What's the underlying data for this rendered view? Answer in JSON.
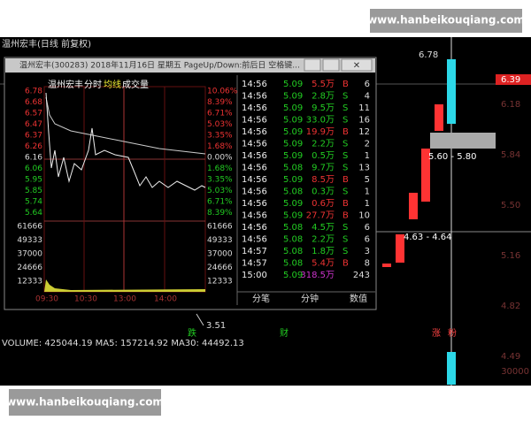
{
  "watermark_top": "www.hanbeikouqiang.com",
  "watermark_bottom": "www.hanbeikouqiang.com",
  "chart_title": "温州宏丰(日线 前复权)",
  "window": {
    "title": "温州宏丰(300283) 2018年11月16日 星期五 PageUp/Down:前后日 空格键...",
    "header": [
      "温州宏丰",
      "分时",
      "均线",
      "成交量"
    ],
    "price_labels": [
      "6.78",
      "6.68",
      "6.57",
      "6.47",
      "6.37",
      "6.26",
      "6.16",
      "6.06",
      "5.95",
      "5.85",
      "5.74",
      "5.64"
    ],
    "pct_labels": [
      "10.06%",
      "8.39%",
      "6.71%",
      "5.03%",
      "3.35%",
      "1.68%",
      "0.00%",
      "1.68%",
      "3.35%",
      "5.03%",
      "6.71%",
      "8.39%"
    ],
    "volume_labels": [
      "61666",
      "49333",
      "37000",
      "24666",
      "12333"
    ],
    "time_labels": [
      "09:30",
      "10:30",
      "13:00",
      "14:00"
    ],
    "trades": [
      [
        "14:56",
        "5.09",
        "5.5万",
        "B",
        "6"
      ],
      [
        "14:56",
        "5.09",
        "2.8万",
        "S",
        "4"
      ],
      [
        "14:56",
        "5.09",
        "9.5万",
        "S",
        "11"
      ],
      [
        "14:56",
        "5.09",
        "33.0万",
        "S",
        "16"
      ],
      [
        "14:56",
        "5.09",
        "19.9万",
        "B",
        "12"
      ],
      [
        "14:56",
        "5.09",
        "2.2万",
        "S",
        "2"
      ],
      [
        "14:56",
        "5.09",
        "0.5万",
        "S",
        "1"
      ],
      [
        "14:56",
        "5.08",
        "9.7万",
        "S",
        "13"
      ],
      [
        "14:56",
        "5.09",
        "8.5万",
        "B",
        "5"
      ],
      [
        "14:56",
        "5.08",
        "0.3万",
        "S",
        "1"
      ],
      [
        "14:56",
        "5.09",
        "0.6万",
        "B",
        "1"
      ],
      [
        "14:56",
        "5.09",
        "27.7万",
        "B",
        "10"
      ],
      [
        "14:56",
        "5.08",
        "4.5万",
        "S",
        "6"
      ],
      [
        "14:56",
        "5.08",
        "2.2万",
        "S",
        "6"
      ],
      [
        "14:57",
        "5.08",
        "1.8万",
        "S",
        "3"
      ],
      [
        "14:57",
        "5.08",
        "5.4万",
        "B",
        "8"
      ],
      [
        "15:00",
        "5.09",
        "318.5万",
        "",
        "243"
      ]
    ],
    "tabs": [
      "分笔",
      "分钟",
      "数值"
    ]
  },
  "annotations": {
    "low": "3.51",
    "high": "6.78",
    "current": "6.39",
    "range1": "5.60 - 5.80",
    "range2": "4.63 - 4.64",
    "fall": "跌",
    "cai": "财",
    "rise": "涨",
    "fen": "粉"
  },
  "right_axis": [
    "6.18",
    "5.84",
    "5.50",
    "5.16",
    "4.82",
    "4.49"
  ],
  "volume_line": "VOLUME: 425044.19 MA5: 157214.92 MA30: 44492.13",
  "bottom_axis": "30000"
}
